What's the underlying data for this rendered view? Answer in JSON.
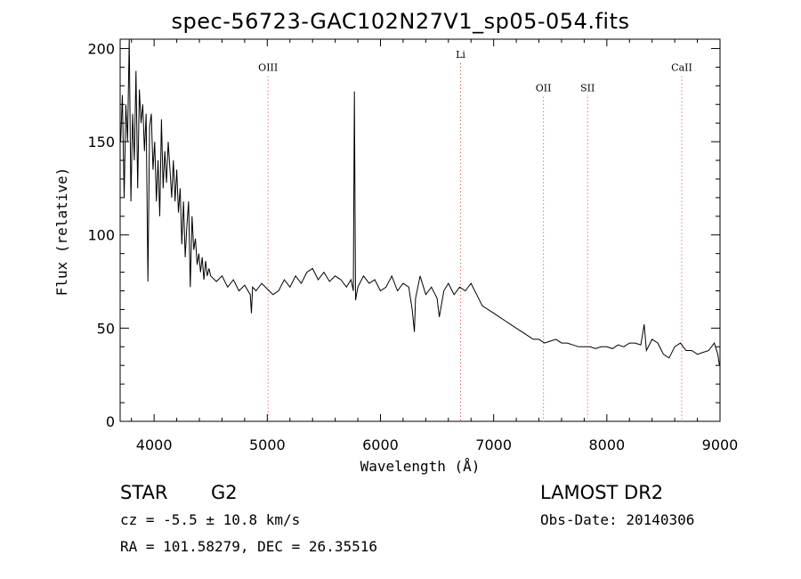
{
  "header": {
    "title": "spec-56723-GAC102N27V1_sp05-054.fits"
  },
  "info": {
    "object_type": "STAR",
    "subclass": "G2",
    "survey": "LAMOST DR2",
    "cz": "cz = -5.5 ± 10.8 km/s",
    "obs_date": "Obs-Date: 20140306",
    "radec": "RA = 101.58279, DEC =  26.35516"
  },
  "chart_data": {
    "type": "line",
    "xlabel": "Wavelength (Å)",
    "ylabel": "Flux (relative)",
    "xlim": [
      3700,
      9000
    ],
    "ylim": [
      0,
      205
    ],
    "xticks": [
      4000,
      5000,
      6000,
      7000,
      8000,
      9000
    ],
    "yticks": [
      0,
      50,
      100,
      150,
      200
    ],
    "line_color": "#000000",
    "marker_color": "#dd3333",
    "lines": [
      {
        "label": "OIII",
        "wavelength": 5007,
        "label_y": 188
      },
      {
        "label": "Li",
        "wavelength": 6708,
        "label_y": 195
      },
      {
        "label": "OII",
        "wavelength": 7440,
        "label_y": 177
      },
      {
        "label": "SII",
        "wavelength": 7830,
        "label_y": 177
      },
      {
        "label": "CaII",
        "wavelength": 8662,
        "label_y": 188
      }
    ],
    "series": [
      {
        "x": [
          3705,
          3720,
          3735,
          3750,
          3765,
          3780,
          3795,
          3810,
          3825,
          3840,
          3855,
          3870,
          3885,
          3900,
          3915,
          3930,
          3945,
          3960,
          3975,
          3990,
          4005,
          4020,
          4035,
          4050,
          4065,
          4080,
          4095,
          4110,
          4125,
          4140,
          4155,
          4170,
          4185,
          4200,
          4215,
          4230,
          4245,
          4260,
          4275,
          4290,
          4305,
          4320,
          4335,
          4350,
          4365,
          4380,
          4395,
          4410,
          4425,
          4440,
          4455,
          4470,
          4485,
          4500,
          4550,
          4600,
          4650,
          4700,
          4750,
          4800,
          4850,
          4860,
          4870,
          4900,
          4950,
          5000,
          5050,
          5100,
          5150,
          5200,
          5250,
          5300,
          5350,
          5400,
          5450,
          5500,
          5550,
          5600,
          5650,
          5700,
          5740,
          5760,
          5770,
          5780,
          5800,
          5850,
          5900,
          5950,
          6000,
          6050,
          6100,
          6150,
          6200,
          6250,
          6280,
          6300,
          6310,
          6350,
          6400,
          6450,
          6500,
          6520,
          6560,
          6600,
          6650,
          6700,
          6750,
          6800,
          6850,
          6900,
          6950,
          7000,
          7050,
          7100,
          7150,
          7200,
          7250,
          7300,
          7350,
          7400,
          7450,
          7500,
          7550,
          7600,
          7650,
          7700,
          7750,
          7800,
          7850,
          7900,
          7950,
          8000,
          8050,
          8100,
          8150,
          8200,
          8250,
          8300,
          8330,
          8350,
          8400,
          8450,
          8500,
          8550,
          8600,
          8650,
          8700,
          8750,
          8800,
          8850,
          8900,
          8950,
          8980,
          8995
        ],
        "y": [
          150,
          175,
          120,
          170,
          150,
          205,
          118,
          165,
          140,
          188,
          125,
          178,
          160,
          170,
          145,
          165,
          75,
          158,
          165,
          135,
          150,
          118,
          140,
          110,
          162,
          125,
          145,
          128,
          150,
          135,
          120,
          140,
          118,
          135,
          112,
          125,
          95,
          118,
          88,
          105,
          118,
          72,
          110,
          92,
          98,
          84,
          90,
          80,
          88,
          76,
          86,
          78,
          82,
          78,
          75,
          78,
          72,
          76,
          70,
          73,
          68,
          58,
          72,
          70,
          74,
          71,
          68,
          70,
          76,
          72,
          78,
          74,
          80,
          82,
          76,
          80,
          75,
          78,
          76,
          72,
          76,
          70,
          177,
          65,
          72,
          78,
          74,
          76,
          70,
          72,
          78,
          70,
          74,
          72,
          60,
          48,
          66,
          78,
          68,
          72,
          66,
          56,
          70,
          74,
          68,
          72,
          70,
          74,
          68,
          62,
          60,
          58,
          56,
          54,
          52,
          50,
          48,
          46,
          44,
          44,
          42,
          43,
          44,
          42,
          42,
          41,
          40,
          40,
          40,
          39,
          40,
          40,
          39,
          41,
          40,
          42,
          42,
          41,
          52,
          38,
          44,
          42,
          36,
          34,
          40,
          42,
          38,
          38,
          36,
          37,
          38,
          42,
          36,
          30
        ]
      }
    ]
  }
}
